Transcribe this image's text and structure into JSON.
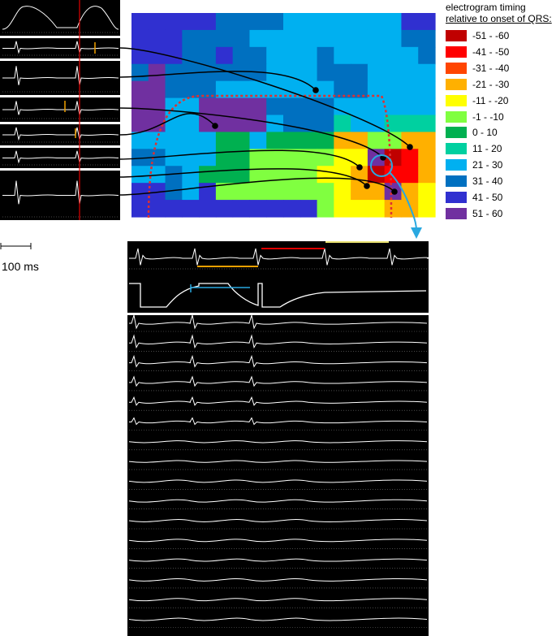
{
  "legend": {
    "title_line1": "electrogram timing",
    "title_line2": "relative to onset of QRS:",
    "items": [
      {
        "label": "-51 - -60",
        "color": "#c00000"
      },
      {
        "label": "-41 - -50",
        "color": "#ff0000"
      },
      {
        "label": "-31 - -40",
        "color": "#ff4500"
      },
      {
        "label": "-21 - -30",
        "color": "#ffb000"
      },
      {
        "label": "-11 - -20",
        "color": "#ffff00"
      },
      {
        "label": "-1 - -10",
        "color": "#80ff40"
      },
      {
        "label": "0 - 10",
        "color": "#00b050"
      },
      {
        "label": "11 - 20",
        "color": "#00d0a0"
      },
      {
        "label": "21 - 30",
        "color": "#00b0f0"
      },
      {
        "label": "31 - 40",
        "color": "#0070c0"
      },
      {
        "label": "41 - 50",
        "color": "#3030d0"
      },
      {
        "label": "51 - 60",
        "color": "#7030a0"
      }
    ]
  },
  "scale": {
    "label": "100 ms"
  },
  "colors": {
    "connector": "#000000",
    "callout": "#29a8e0",
    "outline": "#e03030",
    "marker_red": "#e00000",
    "marker_orange": "#f0a000",
    "marker_yellow": "#e8e070",
    "marker_blue": "#29a8e0",
    "trace": "#ffffff",
    "panel": "#000000"
  }
}
